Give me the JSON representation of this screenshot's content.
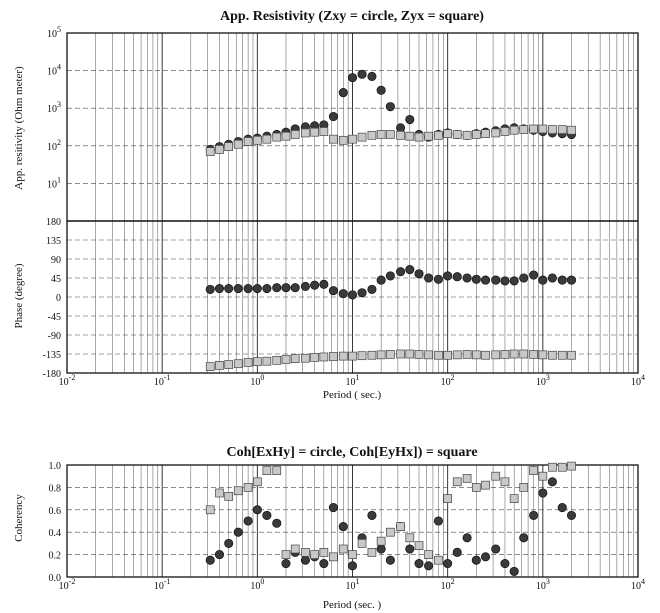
{
  "chart_data": [
    {
      "type": "scatter",
      "title": "App. Resistivity (Zxy = circle, Zyx = square)",
      "ylabel": "App. resitivity (Ohm meter)",
      "xscale": "log",
      "yscale": "log",
      "xlim": [
        0.01,
        10000
      ],
      "ylim": [
        1,
        100000
      ],
      "grid": true,
      "xticks": [
        "10-2",
        "10-1",
        "100",
        "101",
        "102",
        "103",
        "104"
      ],
      "yticks": [
        "101",
        "102",
        "103",
        "104",
        "105"
      ],
      "series": [
        {
          "name": "Zxy",
          "marker": "circle",
          "x": [
            0.32,
            0.4,
            0.5,
            0.63,
            0.8,
            1.0,
            1.26,
            1.6,
            2.0,
            2.5,
            3.2,
            4.0,
            5.0,
            6.3,
            8.0,
            10,
            12.6,
            16,
            20,
            25,
            32,
            40,
            50,
            63,
            80,
            100,
            126,
            160,
            200,
            250,
            320,
            400,
            500,
            630,
            800,
            1000,
            1260,
            1600,
            2000
          ],
          "y": [
            80,
            95,
            110,
            130,
            150,
            160,
            180,
            200,
            230,
            280,
            320,
            340,
            360,
            600,
            2600,
            6500,
            8000,
            7000,
            3000,
            1100,
            300,
            500,
            200,
            170,
            200,
            220,
            200,
            190,
            210,
            230,
            250,
            280,
            300,
            280,
            260,
            240,
            220,
            210,
            200
          ]
        },
        {
          "name": "Zyx",
          "marker": "square",
          "x": [
            0.32,
            0.4,
            0.5,
            0.63,
            0.8,
            1.0,
            1.26,
            1.6,
            2.0,
            2.5,
            3.2,
            4.0,
            5.0,
            6.3,
            8.0,
            10,
            12.6,
            16,
            20,
            25,
            32,
            40,
            50,
            63,
            80,
            100,
            126,
            160,
            200,
            250,
            320,
            400,
            500,
            630,
            800,
            1000,
            1260,
            1600,
            2000
          ],
          "y": [
            70,
            80,
            95,
            110,
            130,
            140,
            150,
            170,
            180,
            200,
            220,
            230,
            240,
            150,
            140,
            150,
            170,
            190,
            200,
            200,
            190,
            180,
            170,
            180,
            190,
            210,
            200,
            190,
            200,
            210,
            220,
            240,
            260,
            270,
            280,
            280,
            270,
            270,
            260
          ]
        }
      ]
    },
    {
      "type": "scatter",
      "ylabel": "Phase (degree)",
      "xlabel": "Period ( sec.)",
      "xscale": "log",
      "xlim": [
        0.01,
        10000
      ],
      "ylim": [
        -180,
        180
      ],
      "grid": true,
      "xticks": [
        "10-2",
        "10-1",
        "100",
        "101",
        "102",
        "103",
        "104"
      ],
      "yticks": [
        "180",
        "135",
        "90",
        "45",
        "0",
        "-45",
        "-90",
        "-135",
        "-180"
      ],
      "series": [
        {
          "name": "Zxy",
          "marker": "circle",
          "x": [
            0.32,
            0.4,
            0.5,
            0.63,
            0.8,
            1.0,
            1.26,
            1.6,
            2.0,
            2.5,
            3.2,
            4.0,
            5.0,
            6.3,
            8.0,
            10,
            12.6,
            16,
            20,
            25,
            32,
            40,
            50,
            63,
            80,
            100,
            126,
            160,
            200,
            250,
            320,
            400,
            500,
            630,
            800,
            1000,
            1260,
            1600,
            2000
          ],
          "y": [
            18,
            20,
            20,
            20,
            20,
            20,
            20,
            22,
            22,
            22,
            25,
            28,
            30,
            15,
            8,
            5,
            10,
            18,
            40,
            50,
            60,
            65,
            55,
            45,
            42,
            50,
            48,
            45,
            42,
            40,
            40,
            38,
            38,
            45,
            52,
            40,
            45,
            40,
            40
          ]
        },
        {
          "name": "Zyx",
          "marker": "square",
          "x": [
            0.32,
            0.4,
            0.5,
            0.63,
            0.8,
            1.0,
            1.26,
            1.6,
            2.0,
            2.5,
            3.2,
            4.0,
            5.0,
            6.3,
            8.0,
            10,
            12.6,
            16,
            20,
            25,
            32,
            40,
            50,
            63,
            80,
            100,
            126,
            160,
            200,
            250,
            320,
            400,
            500,
            630,
            800,
            1000,
            1260,
            1600,
            2000
          ],
          "y": [
            -165,
            -162,
            -160,
            -158,
            -155,
            -153,
            -152,
            -150,
            -148,
            -146,
            -145,
            -143,
            -142,
            -141,
            -140,
            -140,
            -139,
            -138,
            -137,
            -136,
            -135,
            -135,
            -136,
            -137,
            -138,
            -138,
            -137,
            -136,
            -137,
            -138,
            -137,
            -136,
            -135,
            -135,
            -136,
            -137,
            -138,
            -138,
            -138
          ]
        }
      ]
    },
    {
      "type": "scatter",
      "title": "Coh[ExHy] = circle, Coh[EyHx]) = square",
      "ylabel": "Coherency",
      "xlabel": "Period (sec. )",
      "xscale": "log",
      "xlim": [
        0.01,
        10000
      ],
      "ylim": [
        0,
        1
      ],
      "grid": true,
      "xticks": [
        "10-2",
        "10-1",
        "100",
        "101",
        "102",
        "103",
        "104"
      ],
      "yticks": [
        "1.0",
        "0.8",
        "0.6",
        "0.4",
        "0.2",
        "0.0"
      ],
      "series": [
        {
          "name": "ExHy",
          "marker": "circle",
          "x": [
            0.32,
            0.4,
            0.5,
            0.63,
            0.8,
            1.0,
            1.26,
            1.6,
            2.0,
            2.5,
            3.2,
            4.0,
            5.0,
            6.3,
            8.0,
            10,
            12.6,
            16,
            20,
            25,
            32,
            40,
            50,
            63,
            80,
            100,
            126,
            160,
            200,
            250,
            320,
            400,
            500,
            630,
            800,
            1000,
            1260,
            1600,
            2000
          ],
          "y": [
            0.15,
            0.2,
            0.3,
            0.4,
            0.5,
            0.6,
            0.55,
            0.48,
            0.12,
            0.22,
            0.15,
            0.18,
            0.12,
            0.62,
            0.45,
            0.1,
            0.35,
            0.55,
            0.25,
            0.15,
            0.45,
            0.25,
            0.12,
            0.1,
            0.5,
            0.12,
            0.22,
            0.35,
            0.15,
            0.18,
            0.25,
            0.12,
            0.05,
            0.35,
            0.55,
            0.75,
            0.85,
            0.62,
            0.55
          ]
        },
        {
          "name": "EyHx",
          "marker": "square",
          "x": [
            0.32,
            0.4,
            0.5,
            0.63,
            0.8,
            1.0,
            1.26,
            1.6,
            2.0,
            2.5,
            3.2,
            4.0,
            5.0,
            6.3,
            8.0,
            10,
            12.6,
            16,
            20,
            25,
            32,
            40,
            50,
            63,
            80,
            100,
            126,
            160,
            200,
            250,
            320,
            400,
            500,
            630,
            800,
            1000,
            1260,
            1600,
            2000
          ],
          "y": [
            0.6,
            0.75,
            0.72,
            0.77,
            0.8,
            0.85,
            0.95,
            0.95,
            0.2,
            0.25,
            0.22,
            0.2,
            0.22,
            0.18,
            0.25,
            0.2,
            0.3,
            0.22,
            0.32,
            0.4,
            0.45,
            0.35,
            0.28,
            0.2,
            0.15,
            0.7,
            0.85,
            0.88,
            0.8,
            0.82,
            0.9,
            0.85,
            0.7,
            0.8,
            0.95,
            0.9,
            0.98,
            0.98,
            0.99
          ]
        }
      ]
    }
  ]
}
